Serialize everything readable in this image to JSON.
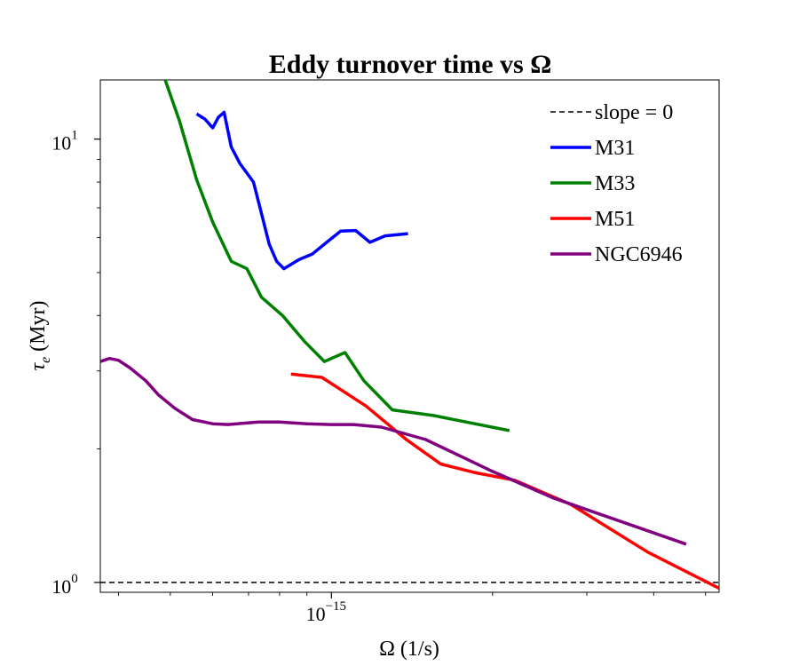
{
  "chart_data": {
    "type": "line",
    "title": "Eddy turnover time vs Ω",
    "xlabel": "Ω (1/s)",
    "ylabel_symbol": "τ",
    "ylabel_sub": "e",
    "ylabel_unit": " (Myr)",
    "x_scale": "log",
    "y_scale": "log",
    "xlim": [
      3.7e-16,
      5.3e-15
    ],
    "ylim": [
      0.95,
      13.6
    ],
    "x_ticks": [
      {
        "value": 1e-15,
        "base": "10",
        "exp": "−15"
      }
    ],
    "y_ticks": [
      {
        "value": 1,
        "base": "10",
        "exp": "0"
      },
      {
        "value": 10,
        "base": "10",
        "exp": "1"
      }
    ],
    "grid": false,
    "legend_position": "top-right",
    "series": [
      {
        "name": "slope = 0",
        "color": "#000000",
        "dashed": true,
        "points": [
          [
            3.7e-16,
            1.0
          ],
          [
            5.3e-15,
            1.0
          ]
        ]
      },
      {
        "name": "M31",
        "color": "#0000ff",
        "dashed": false,
        "points": [
          [
            5.6e-16,
            11.4
          ],
          [
            5.8e-16,
            11.1
          ],
          [
            6e-16,
            10.6
          ],
          [
            6.15e-16,
            11.2
          ],
          [
            6.3e-16,
            11.5
          ],
          [
            6.5e-16,
            9.6
          ],
          [
            6.75e-16,
            8.8
          ],
          [
            7.15e-16,
            8.0
          ],
          [
            7.4e-16,
            6.8
          ],
          [
            7.65e-16,
            5.8
          ],
          [
            7.9e-16,
            5.3
          ],
          [
            8.15e-16,
            5.1
          ],
          [
            8.7e-16,
            5.35
          ],
          [
            9.2e-16,
            5.5
          ],
          [
            9.8e-16,
            5.85
          ],
          [
            1.04e-15,
            6.2
          ],
          [
            1.11e-15,
            6.22
          ],
          [
            1.18e-15,
            5.85
          ],
          [
            1.26e-15,
            6.05
          ],
          [
            1.39e-15,
            6.12
          ]
        ]
      },
      {
        "name": "M33",
        "color": "#008000",
        "dashed": false,
        "points": [
          [
            4.8e-16,
            14.5
          ],
          [
            5.2e-16,
            11.0
          ],
          [
            5.6e-16,
            8.1
          ],
          [
            6e-16,
            6.5
          ],
          [
            6.5e-16,
            5.3
          ],
          [
            6.95e-16,
            5.1
          ],
          [
            7.4e-16,
            4.4
          ],
          [
            8.1e-16,
            4.0
          ],
          [
            8.9e-16,
            3.5
          ],
          [
            9.7e-16,
            3.15
          ],
          [
            1.06e-15,
            3.3
          ],
          [
            1.15e-15,
            2.85
          ],
          [
            1.3e-15,
            2.45
          ],
          [
            1.55e-15,
            2.38
          ],
          [
            2.15e-15,
            2.2
          ]
        ]
      },
      {
        "name": "M51",
        "color": "#ff0000",
        "dashed": false,
        "points": [
          [
            8.4e-16,
            2.95
          ],
          [
            9.6e-16,
            2.9
          ],
          [
            1.16e-15,
            2.5
          ],
          [
            1.38e-15,
            2.1
          ],
          [
            1.6e-15,
            1.85
          ],
          [
            1.85e-15,
            1.77
          ],
          [
            2.2e-15,
            1.7
          ],
          [
            2.8e-15,
            1.5
          ],
          [
            3.9e-15,
            1.17
          ],
          [
            5.3e-15,
            0.97
          ]
        ]
      },
      {
        "name": "NGC6946",
        "color": "#800080",
        "dashed": false,
        "points": [
          [
            3.7e-16,
            3.15
          ],
          [
            3.85e-16,
            3.2
          ],
          [
            4e-16,
            3.17
          ],
          [
            4.2e-16,
            3.05
          ],
          [
            4.5e-16,
            2.85
          ],
          [
            4.75e-16,
            2.65
          ],
          [
            5.1e-16,
            2.47
          ],
          [
            5.5e-16,
            2.33
          ],
          [
            6e-16,
            2.28
          ],
          [
            6.4e-16,
            2.27
          ],
          [
            7.3e-16,
            2.3
          ],
          [
            8e-16,
            2.3
          ],
          [
            9e-16,
            2.28
          ],
          [
            1e-15,
            2.27
          ],
          [
            1.1e-15,
            2.27
          ],
          [
            1.24e-15,
            2.24
          ],
          [
            1.5e-15,
            2.1
          ],
          [
            2e-15,
            1.78
          ],
          [
            2.6e-15,
            1.55
          ],
          [
            4.6e-15,
            1.22
          ]
        ]
      }
    ]
  }
}
